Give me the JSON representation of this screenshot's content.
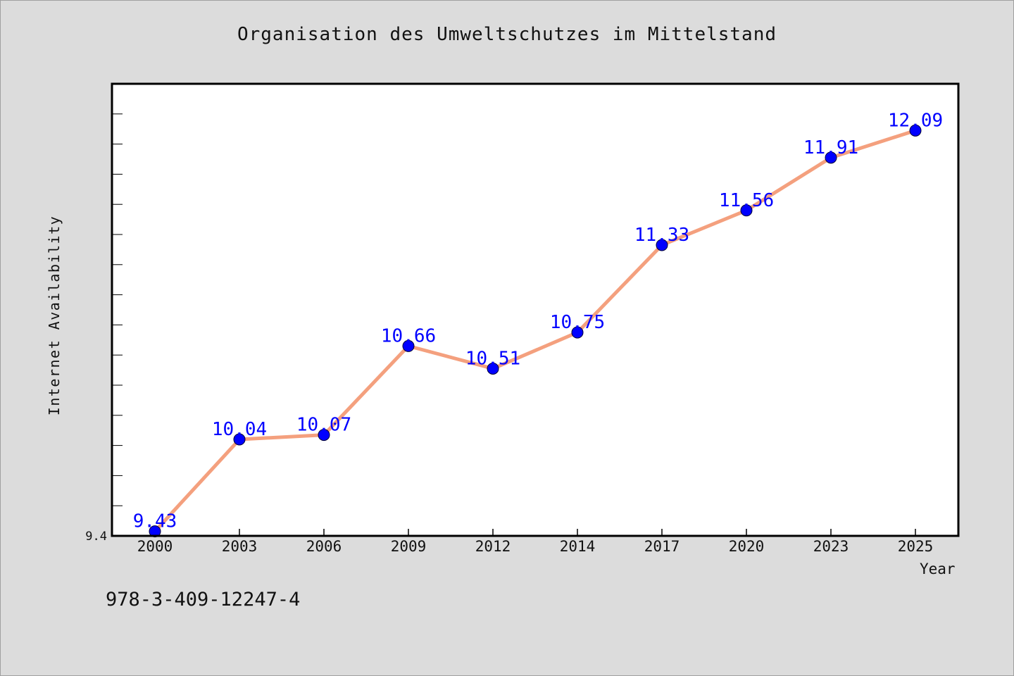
{
  "chart_data": {
    "type": "line",
    "title": "Organisation des Umweltschutzes im Mittelstand",
    "xlabel": "Year",
    "ylabel": "Internet Availability",
    "categories": [
      "2000",
      "2003",
      "2006",
      "2009",
      "2012",
      "2014",
      "2017",
      "2020",
      "2023",
      "2025"
    ],
    "series": [
      {
        "values": [
          9.43,
          10.04,
          10.07,
          10.66,
          10.51,
          10.75,
          11.33,
          11.56,
          11.91,
          12.09
        ]
      }
    ],
    "data_labels": [
      "9.43",
      "10.04",
      "10.07",
      "10.66",
      "10.51",
      "10.75",
      "11.33",
      "11.56",
      "11.91",
      "12.09"
    ],
    "y_tick_labels": [
      "9.4"
    ],
    "ylim": [
      9.4,
      12.4
    ],
    "grid": false,
    "line_color": "#f4a07e",
    "marker_color": "#0000ff",
    "label_color": "#0000ff"
  },
  "footer": {
    "isbn": "978-3-409-12247-4"
  }
}
